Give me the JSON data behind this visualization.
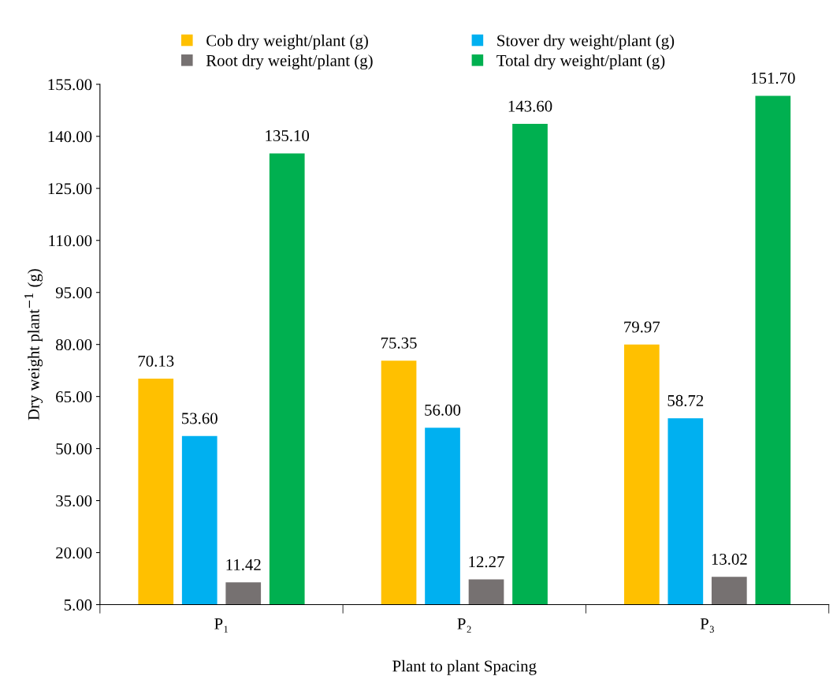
{
  "chart_data": {
    "type": "bar",
    "xlabel": "Plant to plant Spacing",
    "ylabel": "Dry weight plant$^{−1}$ (g)",
    "categories": [
      "P₁",
      "P₂",
      "P₃"
    ],
    "series": [
      {
        "name": "Cob dry weight/plant (g)",
        "color": "#ffc000",
        "values": [
          70.13,
          75.35,
          79.97
        ],
        "value_labels": [
          "70.13",
          "75.35",
          "79.97"
        ]
      },
      {
        "name": "Stover dry weight/plant (g)",
        "color": "#00b0f0",
        "values": [
          53.6,
          56.0,
          58.72
        ],
        "value_labels": [
          "53.60",
          "56.00",
          "58.72"
        ]
      },
      {
        "name": "Root dry weight/plant (g)",
        "color": "#767171",
        "values": [
          11.42,
          12.27,
          13.02
        ],
        "value_labels": [
          "11.42",
          "12.27",
          "13.02"
        ]
      },
      {
        "name": "Total dry weight/plant (g)",
        "color": "#00b050",
        "values": [
          135.1,
          143.6,
          151.7
        ],
        "value_labels": [
          "135.10",
          "143.60",
          "151.70"
        ]
      }
    ],
    "ylim": [
      5,
      155
    ],
    "yticks": [
      {
        "value": 5,
        "label": "5.00"
      },
      {
        "value": 20,
        "label": "20.00"
      },
      {
        "value": 35,
        "label": "35.00"
      },
      {
        "value": 50,
        "label": "50.00"
      },
      {
        "value": 65,
        "label": "65.00"
      },
      {
        "value": 80,
        "label": "80.00"
      },
      {
        "value": 95,
        "label": "95.00"
      },
      {
        "value": 110,
        "label": "110.00"
      },
      {
        "value": 125,
        "label": "125.00"
      },
      {
        "value": 140,
        "label": "140.00"
      },
      {
        "value": 155,
        "label": "155.00"
      }
    ],
    "grid": false,
    "legend": "top"
  }
}
